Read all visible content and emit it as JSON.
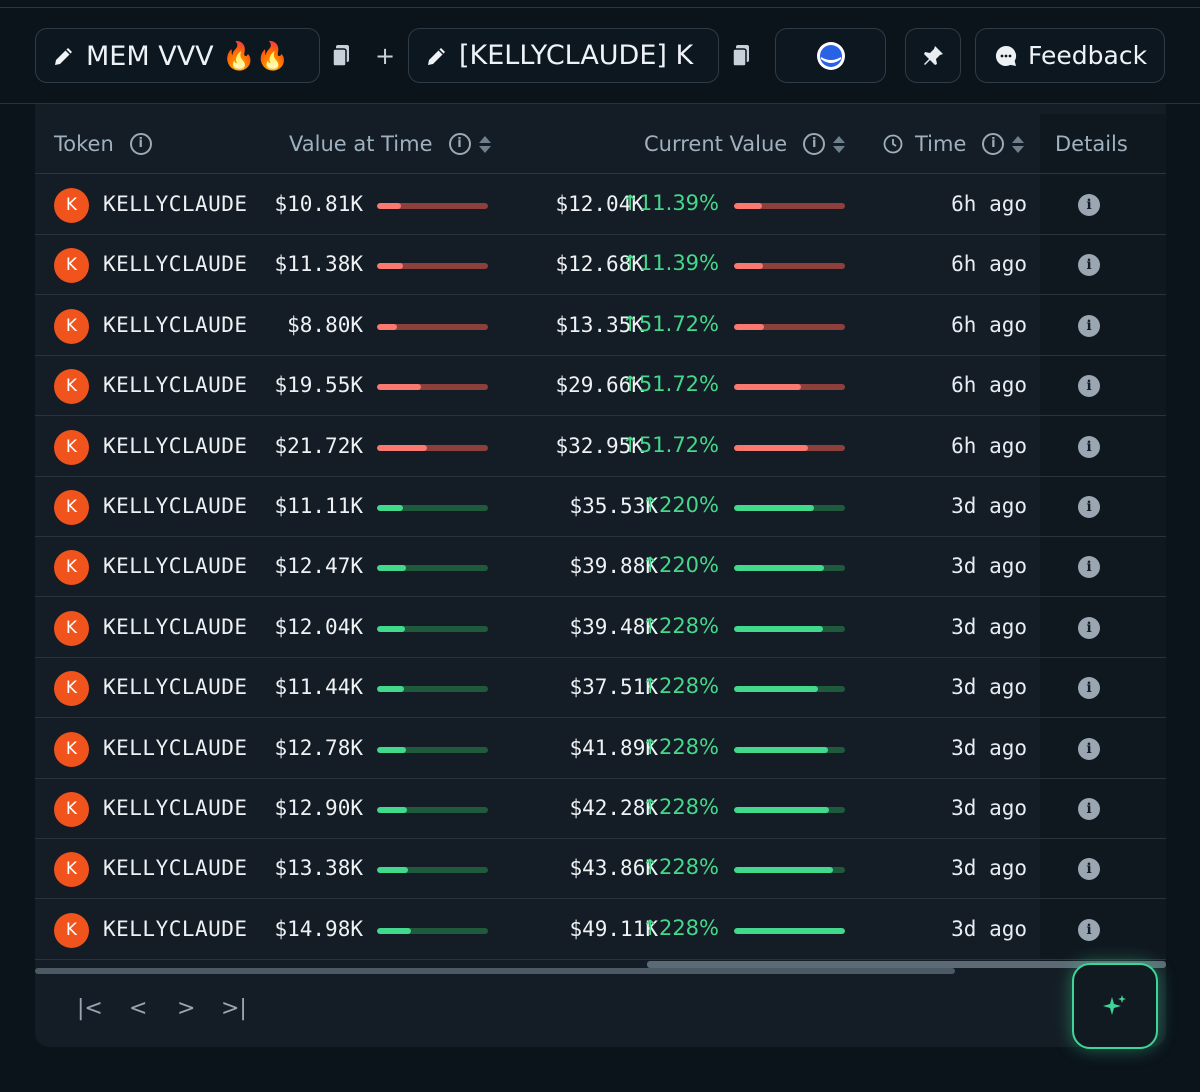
{
  "tabs": [
    {
      "label": "MEM VVV 🔥🔥"
    },
    {
      "label": "[KELLYCLAUDE] K"
    }
  ],
  "plus_label": "+",
  "feedback_label": "Feedback",
  "colors": {
    "accent_green": "#43d98d",
    "accent_red": "#f97870",
    "avatar": "#f0531c"
  },
  "table": {
    "headers": {
      "token": "Token",
      "value_at_time": "Value at Time",
      "current_value": "Current Value",
      "time": "Time",
      "details": "Details"
    },
    "rows": [
      {
        "token": "KELLYCLAUDE",
        "initial": "K",
        "value_at_time": "$10.81K",
        "bar1": 0.22,
        "current_value": "$12.04K",
        "change": "↑11.39%",
        "bar2": 0.25,
        "trend": "red",
        "time": "6h ago"
      },
      {
        "token": "KELLYCLAUDE",
        "initial": "K",
        "value_at_time": "$11.38K",
        "bar1": 0.23,
        "current_value": "$12.68K",
        "change": "↑11.39%",
        "bar2": 0.26,
        "trend": "red",
        "time": "6h ago"
      },
      {
        "token": "KELLYCLAUDE",
        "initial": "K",
        "value_at_time": "$8.80K",
        "bar1": 0.18,
        "current_value": "$13.35K",
        "change": "↑51.72%",
        "bar2": 0.27,
        "trend": "red",
        "time": "6h ago"
      },
      {
        "token": "KELLYCLAUDE",
        "initial": "K",
        "value_at_time": "$19.55K",
        "bar1": 0.4,
        "current_value": "$29.66K",
        "change": "↑51.72%",
        "bar2": 0.6,
        "trend": "red",
        "time": "6h ago"
      },
      {
        "token": "KELLYCLAUDE",
        "initial": "K",
        "value_at_time": "$21.72K",
        "bar1": 0.45,
        "current_value": "$32.95K",
        "change": "↑51.72%",
        "bar2": 0.67,
        "trend": "red",
        "time": "6h ago"
      },
      {
        "token": "KELLYCLAUDE",
        "initial": "K",
        "value_at_time": "$11.11K",
        "bar1": 0.23,
        "current_value": "$35.53K",
        "change": "↑220%",
        "bar2": 0.72,
        "trend": "green",
        "time": "3d ago"
      },
      {
        "token": "KELLYCLAUDE",
        "initial": "K",
        "value_at_time": "$12.47K",
        "bar1": 0.26,
        "current_value": "$39.88K",
        "change": "↑220%",
        "bar2": 0.81,
        "trend": "green",
        "time": "3d ago"
      },
      {
        "token": "KELLYCLAUDE",
        "initial": "K",
        "value_at_time": "$12.04K",
        "bar1": 0.25,
        "current_value": "$39.48K",
        "change": "↑228%",
        "bar2": 0.8,
        "trend": "green",
        "time": "3d ago"
      },
      {
        "token": "KELLYCLAUDE",
        "initial": "K",
        "value_at_time": "$11.44K",
        "bar1": 0.24,
        "current_value": "$37.51K",
        "change": "↑228%",
        "bar2": 0.76,
        "trend": "green",
        "time": "3d ago"
      },
      {
        "token": "KELLYCLAUDE",
        "initial": "K",
        "value_at_time": "$12.78K",
        "bar1": 0.26,
        "current_value": "$41.89K",
        "change": "↑228%",
        "bar2": 0.85,
        "trend": "green",
        "time": "3d ago"
      },
      {
        "token": "KELLYCLAUDE",
        "initial": "K",
        "value_at_time": "$12.90K",
        "bar1": 0.27,
        "current_value": "$42.28K",
        "change": "↑228%",
        "bar2": 0.86,
        "trend": "green",
        "time": "3d ago"
      },
      {
        "token": "KELLYCLAUDE",
        "initial": "K",
        "value_at_time": "$13.38K",
        "bar1": 0.28,
        "current_value": "$43.86K",
        "change": "↑228%",
        "bar2": 0.89,
        "trend": "green",
        "time": "3d ago"
      },
      {
        "token": "KELLYCLAUDE",
        "initial": "K",
        "value_at_time": "$14.98K",
        "bar1": 0.31,
        "current_value": "$49.11K",
        "change": "↑228%",
        "bar2": 1.0,
        "trend": "green",
        "time": "3d ago"
      }
    ]
  },
  "pagination": {
    "first": "|<",
    "prev": "<",
    "next": ">",
    "last": ">|"
  }
}
